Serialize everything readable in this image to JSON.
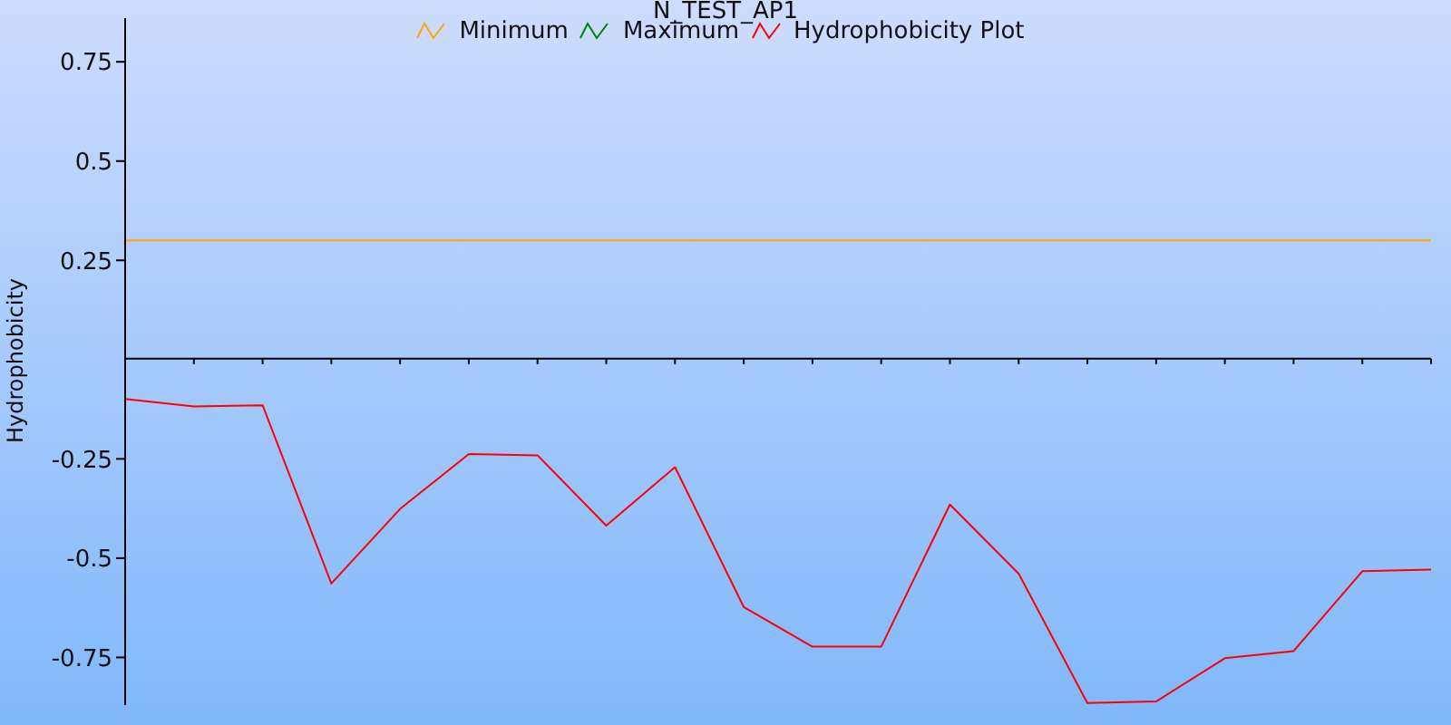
{
  "chart_data": {
    "type": "line",
    "title": "N_TEST_AP1",
    "ylabel": "Hydrophobicity",
    "categories": [
      null,
      null,
      null,
      null,
      null,
      null,
      null,
      null,
      null,
      null,
      null,
      null,
      null,
      null,
      null,
      null,
      null,
      null,
      null,
      null
    ],
    "series": [
      {
        "name": "Minimum",
        "color": "#ffa500",
        "values": [
          0.3,
          0.3,
          0.3,
          0.3,
          0.3,
          0.3,
          0.3,
          0.3,
          0.3,
          0.3,
          0.3,
          0.3,
          0.3,
          0.3,
          0.3,
          0.3,
          0.3,
          0.3,
          0.3,
          0.3
        ]
      },
      {
        "name": "Maximum",
        "color": "#008000",
        "values": [
          null,
          null,
          null,
          null,
          null,
          null,
          null,
          null,
          null,
          null,
          null,
          null,
          null,
          null,
          null,
          null,
          null,
          null,
          null,
          null
        ]
      },
      {
        "name": "Hydrophobicity Plot",
        "color": "#ff0000",
        "values": [
          -0.099,
          -0.118,
          -0.115,
          -0.564,
          -0.376,
          -0.238,
          -0.241,
          -0.418,
          -0.271,
          -0.623,
          -0.723,
          -0.723,
          -0.365,
          -0.539,
          -0.865,
          -0.861,
          -0.752,
          -0.734,
          -0.533,
          -0.529
        ]
      }
    ],
    "ylim": [
      -0.87,
      0.86
    ],
    "yticks": [
      -0.75,
      -0.5,
      -0.25,
      0.25,
      0.5,
      0.75
    ],
    "legend": "top",
    "marker": "none",
    "line_style": "solid"
  }
}
